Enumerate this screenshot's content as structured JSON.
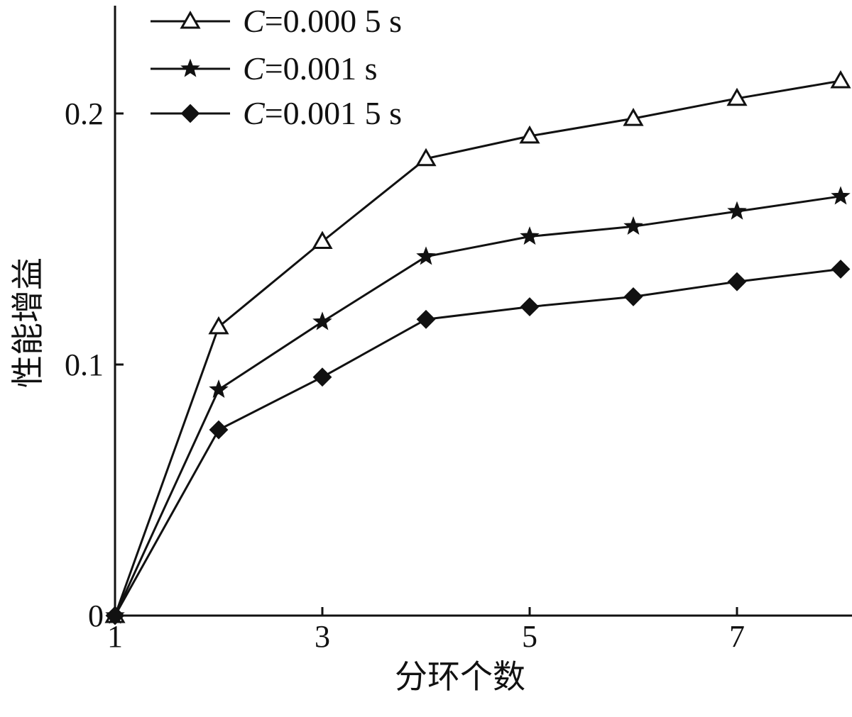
{
  "chart_data": {
    "type": "line",
    "xlabel": "分环个数",
    "ylabel": "性能增益",
    "x": [
      1,
      2,
      3,
      4,
      5,
      6,
      7,
      8
    ],
    "xlim": [
      1,
      8
    ],
    "ylim": [
      0,
      0.24
    ],
    "xticks": [
      "1",
      "3",
      "5",
      "7"
    ],
    "xtick_values": [
      1,
      3,
      5,
      7
    ],
    "yticks": [
      "0",
      "0.1",
      "0.2"
    ],
    "ytick_values": [
      0,
      0.1,
      0.2
    ],
    "grid": false,
    "legend_position": "top-left",
    "series": [
      {
        "name": "C=0.000 5 s",
        "name_var": "C",
        "name_rest": "=0.000 5 s",
        "marker": "triangle-open",
        "values": [
          0,
          0.115,
          0.149,
          0.182,
          0.191,
          0.198,
          0.206,
          0.213
        ]
      },
      {
        "name": "C=0.001 s",
        "name_var": "C",
        "name_rest": "=0.001 s",
        "marker": "star",
        "values": [
          0,
          0.09,
          0.117,
          0.143,
          0.151,
          0.155,
          0.161,
          0.167
        ]
      },
      {
        "name": "C=0.001 5 s",
        "name_var": "C",
        "name_rest": "=0.001 5 s",
        "marker": "diamond-filled",
        "values": [
          0,
          0.074,
          0.095,
          0.118,
          0.123,
          0.127,
          0.133,
          0.138
        ]
      }
    ]
  }
}
